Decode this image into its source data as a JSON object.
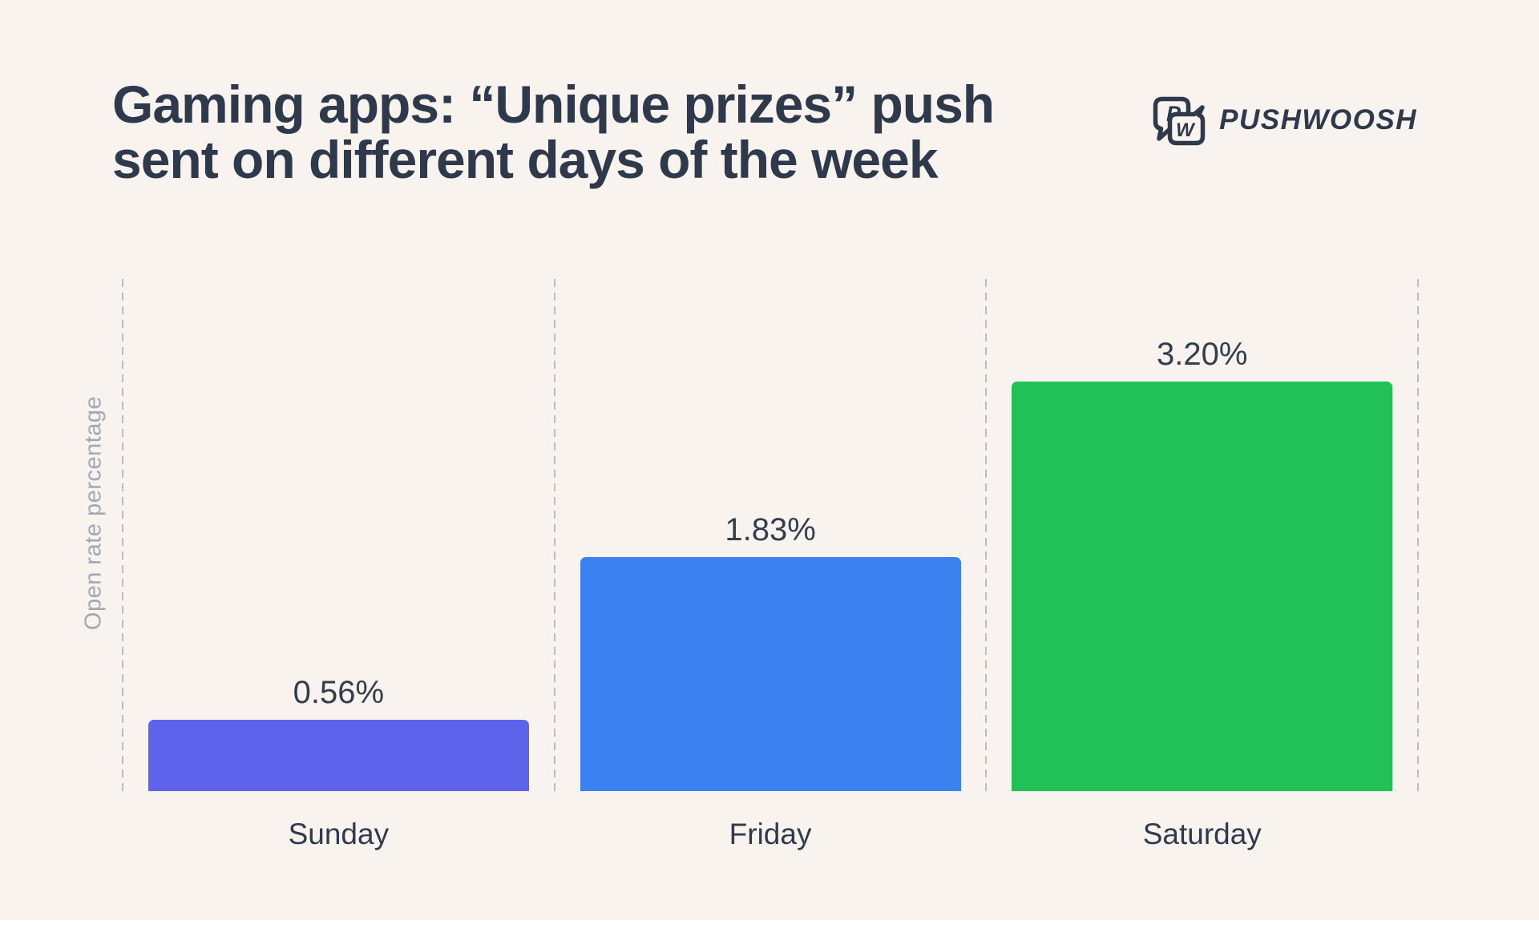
{
  "title": {
    "line1": "Gaming apps: “Unique prizes” push",
    "line2": "sent on different days of the week"
  },
  "logo": {
    "brand": "PUSHWOOSH",
    "icon_letter_p": "P",
    "icon_letter_w": "W"
  },
  "chart_data": {
    "type": "bar",
    "title": "Gaming apps: “Unique prizes” push sent on different days of the week",
    "categories": [
      "Sunday",
      "Friday",
      "Saturday"
    ],
    "values": [
      0.56,
      1.83,
      3.2
    ],
    "value_labels": [
      "0.56%",
      "1.83%",
      "3.20%"
    ],
    "xlabel": "",
    "ylabel": "Open rate percentage",
    "ylim": [
      0,
      3.5
    ],
    "grid": "vertical dashed separators between categories, no y-axis ticks",
    "legend": "none",
    "bar_colors": [
      "#5E63EB",
      "#3B82F0",
      "#22C158"
    ]
  },
  "colors": {
    "background": "#F8F3EE",
    "title_text": "#2E3A4B",
    "value_label_text": "#333E4D",
    "category_label_text": "#2F3B4C",
    "axis_label_text": "#A1A7B3",
    "separator": "#B8BCC8",
    "logo": "#2E3A4B",
    "bar_sunday": "#5E63EB",
    "bar_friday": "#3B82F0",
    "bar_saturday": "#22C158"
  }
}
